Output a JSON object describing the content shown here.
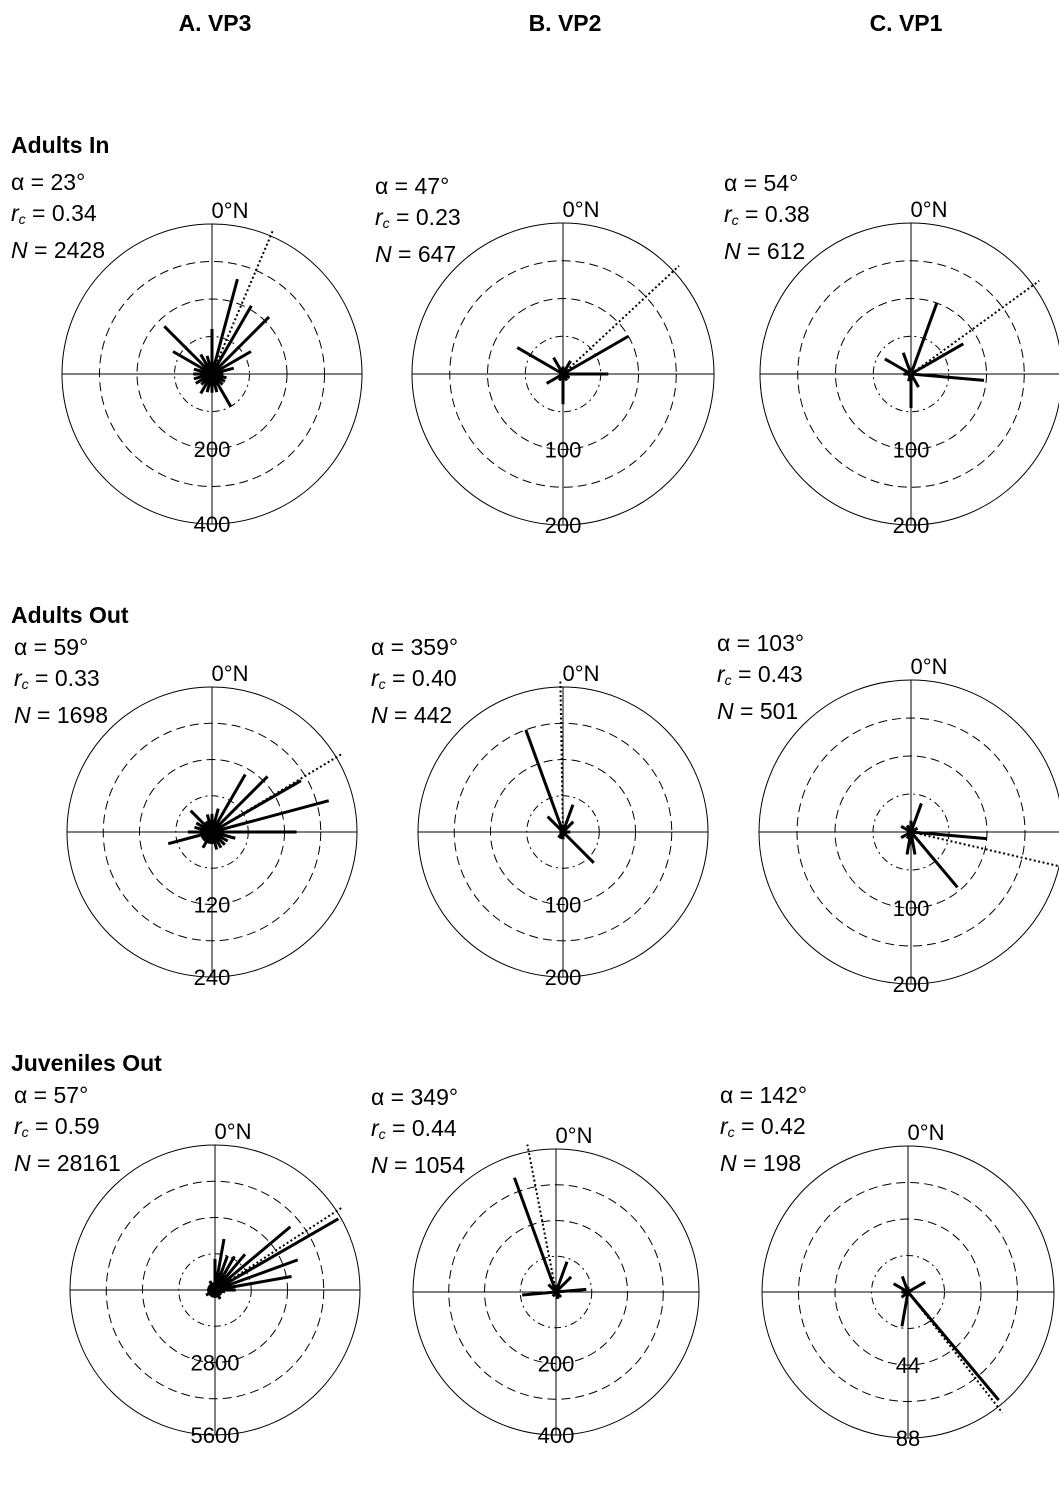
{
  "columns": [
    {
      "key": "vp3",
      "title": "A. VP3"
    },
    {
      "key": "vp2",
      "title": "B. VP2"
    },
    {
      "key": "vp1",
      "title": "C. VP1"
    }
  ],
  "rows": [
    {
      "key": "adults_in",
      "title": "Adults In"
    },
    {
      "key": "adults_out",
      "title": "Adults Out"
    },
    {
      "key": "juveniles_out",
      "title": "Juveniles Out"
    }
  ],
  "north_label": "0°N",
  "stat_symbols": {
    "alpha": "α",
    "r": "r",
    "r_sub": "c",
    "n": "N"
  },
  "chart_data": [
    {
      "type": "rose",
      "column": "A. VP3",
      "row": "Adults In",
      "alpha": "23°",
      "rc": "0.34",
      "n": "2428",
      "rmax": 400,
      "ring_labels": [
        "200",
        "400"
      ],
      "directions": [
        0,
        15,
        30,
        45,
        60,
        75,
        90,
        105,
        120,
        135,
        150,
        165,
        180,
        195,
        210,
        225,
        240,
        255,
        270,
        285,
        300,
        315,
        330,
        345
      ],
      "values": [
        120,
        262,
        210,
        215,
        120,
        60,
        30,
        40,
        40,
        40,
        100,
        50,
        50,
        50,
        60,
        40,
        50,
        50,
        50,
        50,
        120,
        180,
        60,
        50
      ]
    },
    {
      "type": "rose",
      "column": "B. VP2",
      "row": "Adults In",
      "alpha": "47°",
      "rc": "0.23",
      "n": "647",
      "rmax": 200,
      "ring_labels": [
        "100",
        "200"
      ],
      "directions": [
        0,
        30,
        60,
        90,
        120,
        150,
        180,
        210,
        240,
        270,
        300,
        330
      ],
      "values": [
        10,
        20,
        100,
        60,
        10,
        10,
        40,
        10,
        25,
        5,
        70,
        25
      ]
    },
    {
      "type": "rose",
      "column": "C. VP1",
      "row": "Adults In",
      "alpha": "54°",
      "rc": "0.38",
      "n": "612",
      "rmax": 200,
      "ring_labels": [
        "100",
        "200"
      ],
      "directions": [
        0,
        20,
        60,
        95,
        150,
        180,
        200,
        240,
        270,
        300,
        340
      ],
      "values": [
        5,
        100,
        80,
        97,
        20,
        45,
        10,
        5,
        10,
        40,
        30
      ]
    },
    {
      "type": "rose",
      "column": "A. VP3",
      "row": "Adults Out",
      "alpha": "59°",
      "rc": "0.33",
      "n": "1698",
      "rmax": 240,
      "ring_labels": [
        "120",
        "240"
      ],
      "directions": [
        0,
        15,
        30,
        45,
        60,
        75,
        90,
        105,
        120,
        135,
        150,
        165,
        180,
        195,
        210,
        225,
        240,
        255,
        270,
        285,
        300,
        315,
        330,
        345
      ],
      "values": [
        30,
        40,
        110,
        130,
        170,
        200,
        140,
        40,
        30,
        30,
        30,
        30,
        20,
        20,
        30,
        20,
        20,
        75,
        40,
        30,
        30,
        50,
        20,
        30
      ]
    },
    {
      "type": "rose",
      "column": "B. VP2",
      "row": "Adults Out",
      "alpha": "359°",
      "rc": "0.40",
      "n": "442",
      "rmax": 200,
      "ring_labels": [
        "100",
        "200"
      ],
      "directions": [
        0,
        20,
        45,
        90,
        135,
        180,
        200,
        220,
        270,
        315,
        340
      ],
      "values": [
        10,
        40,
        20,
        10,
        60,
        10,
        10,
        10,
        5,
        30,
        150
      ]
    },
    {
      "type": "rose",
      "column": "C. VP1",
      "row": "Adults Out",
      "alpha": "103°",
      "rc": "0.43",
      "n": "501",
      "rmax": 200,
      "ring_labels": [
        "100",
        "200"
      ],
      "directions": [
        0,
        20,
        60,
        95,
        140,
        170,
        190,
        210,
        240,
        300,
        330
      ],
      "values": [
        15,
        40,
        10,
        100,
        95,
        30,
        30,
        10,
        15,
        15,
        10
      ]
    },
    {
      "type": "rose",
      "column": "A. VP3",
      "row": "Juveniles Out",
      "alpha": "57°",
      "rc": "0.59",
      "n": "28161",
      "rmax": 5600,
      "ring_labels": [
        "2800",
        "5600"
      ],
      "directions": [
        0,
        10,
        20,
        30,
        40,
        50,
        60,
        70,
        80,
        90,
        100,
        110,
        120,
        135,
        150,
        165,
        180,
        195,
        210,
        225,
        240,
        255,
        270,
        285,
        300,
        315,
        330,
        345
      ],
      "values": [
        1200,
        2000,
        1400,
        1500,
        1800,
        3800,
        5500,
        3400,
        3000,
        800,
        400,
        300,
        300,
        300,
        400,
        300,
        300,
        300,
        300,
        300,
        400,
        300,
        300,
        300,
        300,
        300,
        400,
        300
      ]
    },
    {
      "type": "rose",
      "column": "B. VP2",
      "row": "Juveniles Out",
      "alpha": "349°",
      "rc": "0.44",
      "n": "1054",
      "rmax": 400,
      "ring_labels": [
        "200",
        "400"
      ],
      "directions": [
        0,
        20,
        45,
        85,
        135,
        165,
        190,
        215,
        265,
        315,
        340
      ],
      "values": [
        20,
        90,
        60,
        85,
        20,
        20,
        10,
        15,
        95,
        30,
        340
      ]
    },
    {
      "type": "rose",
      "column": "C. VP1",
      "row": "Juveniles Out",
      "alpha": "142°",
      "rc": "0.42",
      "n": "198",
      "rmax": 88,
      "ring_labels": [
        "44",
        "88"
      ],
      "directions": [
        0,
        60,
        140,
        190,
        230,
        270,
        300,
        340
      ],
      "values": [
        3,
        12,
        85,
        21,
        5,
        4,
        10,
        10
      ]
    }
  ]
}
